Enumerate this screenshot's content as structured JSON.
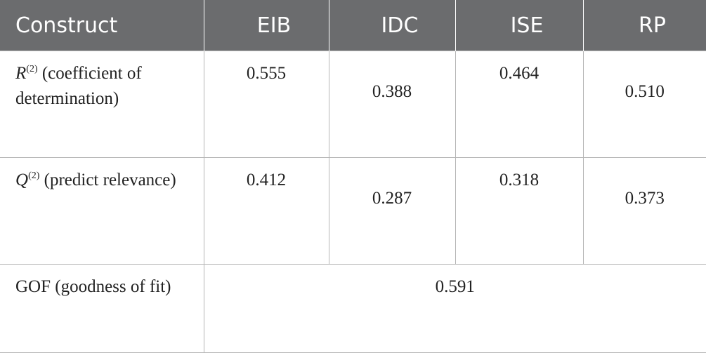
{
  "table": {
    "header": [
      "Construct",
      "EIB",
      "IDC",
      "ISE",
      "RP"
    ],
    "rows": [
      {
        "symbol": "R",
        "sup": "(2)",
        "text": "(coefficient of determination)",
        "values": [
          "0.555",
          "0.388",
          "0.464",
          "0.510"
        ]
      },
      {
        "symbol": "Q",
        "sup": "(2)",
        "text": "(predict relevance)",
        "values": [
          "0.412",
          "0.287",
          "0.318",
          "0.373"
        ]
      }
    ],
    "gof": {
      "text": "GOF (goodness of fit)",
      "value": "0.591"
    }
  }
}
